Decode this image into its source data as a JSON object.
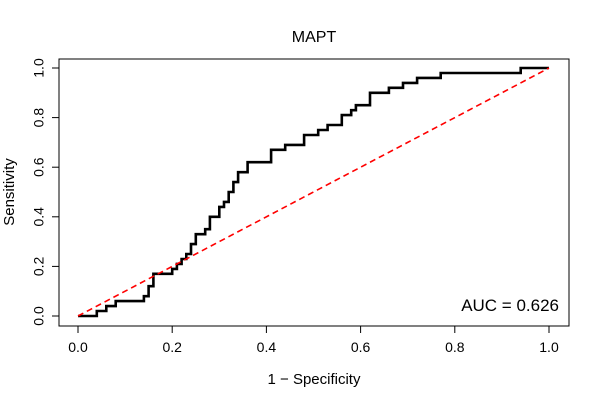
{
  "chart_data": {
    "type": "line",
    "title": "MAPT",
    "xlabel": "1 − Specificity",
    "ylabel": "Sensitivity",
    "xlim": [
      0.0,
      1.0
    ],
    "ylim": [
      0.0,
      1.0
    ],
    "x_ticks": [
      "0.0",
      "0.2",
      "0.4",
      "0.6",
      "0.8",
      "1.0"
    ],
    "y_ticks": [
      "0.0",
      "0.2",
      "0.4",
      "0.6",
      "0.8",
      "1.0"
    ],
    "grid": false,
    "annotation": "AUC = 0.626",
    "series": [
      {
        "color": "#000000",
        "style": "solid",
        "x": [
          0.0,
          0.01,
          0.04,
          0.04,
          0.06,
          0.06,
          0.08,
          0.08,
          0.1,
          0.14,
          0.14,
          0.15,
          0.15,
          0.16,
          0.16,
          0.2,
          0.2,
          0.21,
          0.21,
          0.22,
          0.22,
          0.23,
          0.23,
          0.24,
          0.24,
          0.25,
          0.25,
          0.27,
          0.27,
          0.28,
          0.28,
          0.3,
          0.3,
          0.31,
          0.31,
          0.32,
          0.32,
          0.33,
          0.33,
          0.34,
          0.34,
          0.36,
          0.36,
          0.38,
          0.38,
          0.41,
          0.41,
          0.44,
          0.44,
          0.46,
          0.46,
          0.48,
          0.48,
          0.51,
          0.51,
          0.53,
          0.53,
          0.56,
          0.56,
          0.58,
          0.58,
          0.59,
          0.59,
          0.62,
          0.62,
          0.66,
          0.66,
          0.69,
          0.69,
          0.7,
          0.7,
          0.72,
          0.72,
          0.77,
          0.77,
          0.78,
          0.78,
          0.94,
          0.94,
          1.0
        ],
        "y": [
          0.0,
          0.0,
          0.0,
          0.02,
          0.02,
          0.04,
          0.04,
          0.06,
          0.06,
          0.06,
          0.08,
          0.08,
          0.12,
          0.12,
          0.17,
          0.17,
          0.19,
          0.19,
          0.21,
          0.21,
          0.23,
          0.23,
          0.25,
          0.25,
          0.29,
          0.29,
          0.33,
          0.33,
          0.35,
          0.35,
          0.4,
          0.4,
          0.44,
          0.44,
          0.46,
          0.46,
          0.5,
          0.5,
          0.54,
          0.54,
          0.58,
          0.58,
          0.62,
          0.62,
          0.62,
          0.62,
          0.67,
          0.67,
          0.69,
          0.69,
          0.69,
          0.69,
          0.73,
          0.73,
          0.75,
          0.75,
          0.77,
          0.77,
          0.81,
          0.81,
          0.83,
          0.83,
          0.85,
          0.85,
          0.9,
          0.9,
          0.92,
          0.92,
          0.94,
          0.94,
          0.94,
          0.94,
          0.96,
          0.96,
          0.98,
          0.98,
          0.98,
          0.98,
          1.0,
          1.0
        ]
      },
      {
        "color": "#ff0000",
        "style": "dashed",
        "x": [
          0.0,
          1.0
        ],
        "y": [
          0.0,
          1.0
        ]
      }
    ]
  }
}
